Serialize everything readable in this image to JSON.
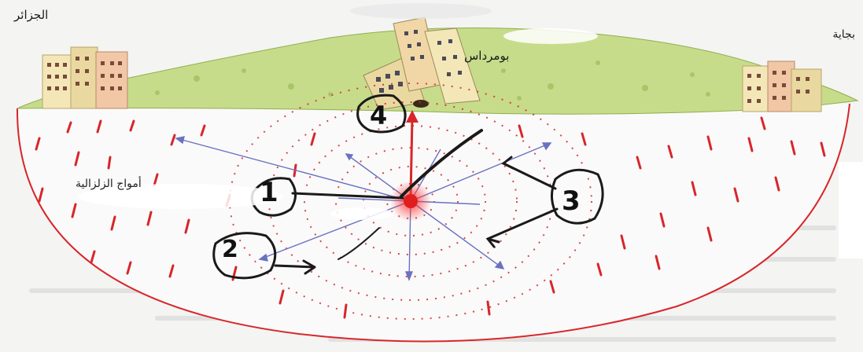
{
  "labels": {
    "city_left": "الجزائر",
    "city_right": "بجاية",
    "epicenter_city": "بومرداس",
    "waves_label": "أمواج الزلزالية"
  },
  "markers": {
    "one": "1",
    "two": "2",
    "three": "3",
    "four": "4"
  },
  "colors": {
    "ground": "#c7dc8a",
    "fault_red": "#d8262a",
    "wave_arrow": "#6a72c0",
    "ink": "#1a1a1a"
  }
}
